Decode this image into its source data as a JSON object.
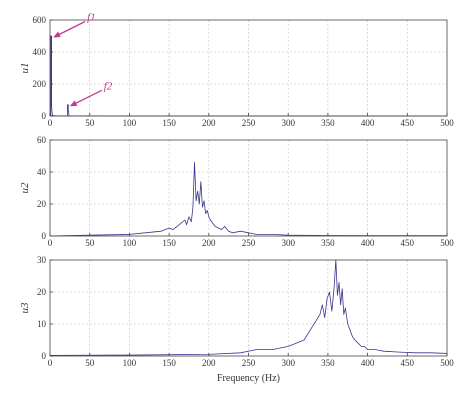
{
  "chart_data": [
    {
      "type": "line",
      "ylabel": "u1",
      "xlim": [
        0,
        500
      ],
      "ylim": [
        0,
        600
      ],
      "xticks": [
        0,
        50,
        100,
        150,
        200,
        250,
        300,
        350,
        400,
        450,
        500
      ],
      "yticks": [
        0,
        200,
        400,
        600
      ],
      "grid": true,
      "series": [
        {
          "x": [
            0,
            1,
            1,
            2,
            2,
            3,
            4,
            10,
            20,
            22,
            22,
            23,
            23,
            24,
            30,
            40,
            60,
            100,
            200,
            300,
            400,
            500
          ],
          "y": [
            0,
            0,
            500,
            500,
            60,
            2,
            2,
            1,
            1,
            1,
            70,
            70,
            40,
            1,
            1,
            1,
            1,
            0,
            0,
            0,
            0,
            0
          ]
        }
      ],
      "annotations": [
        {
          "text": "f1",
          "x": 2,
          "y": 500
        },
        {
          "text": "f2",
          "x": 23,
          "y": 70
        }
      ]
    },
    {
      "type": "line",
      "ylabel": "u2",
      "xlim": [
        0,
        500
      ],
      "ylim": [
        0,
        60
      ],
      "xticks": [
        0,
        50,
        100,
        150,
        200,
        250,
        300,
        350,
        400,
        450,
        500
      ],
      "yticks": [
        0,
        20,
        40,
        60
      ],
      "grid": true,
      "series": [
        {
          "x": [
            0,
            50,
            100,
            120,
            140,
            150,
            155,
            160,
            165,
            170,
            172,
            175,
            178,
            180,
            182,
            184,
            186,
            188,
            190,
            192,
            194,
            196,
            198,
            200,
            202,
            205,
            208,
            212,
            216,
            220,
            225,
            230,
            240,
            250,
            260,
            280,
            300,
            350,
            400,
            450,
            500
          ],
          "y": [
            0,
            0.5,
            1,
            2,
            3,
            5,
            4,
            6,
            8,
            10,
            7,
            12,
            9,
            18,
            46,
            22,
            28,
            20,
            34,
            18,
            22,
            14,
            16,
            12,
            10,
            8,
            6,
            5,
            4,
            6,
            3,
            2,
            3,
            2,
            1,
            1,
            0.5,
            0.3,
            0.2,
            0.2,
            0.2
          ]
        }
      ]
    },
    {
      "type": "line",
      "ylabel": "u3",
      "xlim": [
        0,
        500
      ],
      "ylim": [
        0,
        30
      ],
      "xticks": [
        0,
        50,
        100,
        150,
        200,
        250,
        300,
        350,
        400,
        450,
        500
      ],
      "yticks": [
        0,
        10,
        20,
        30
      ],
      "grid": true,
      "xlabel": "Frequency (Hz)",
      "series": [
        {
          "x": [
            0,
            100,
            200,
            240,
            260,
            280,
            300,
            310,
            320,
            325,
            330,
            335,
            340,
            343,
            346,
            349,
            352,
            355,
            358,
            360,
            362,
            364,
            366,
            368,
            370,
            372,
            375,
            378,
            381,
            384,
            388,
            392,
            396,
            400,
            410,
            420,
            440,
            460,
            480,
            500
          ],
          "y": [
            0.2,
            0.3,
            0.5,
            1,
            2,
            2,
            3,
            4,
            5,
            7,
            9,
            11,
            13,
            16,
            12,
            18,
            20,
            14,
            22,
            30,
            19,
            23,
            16,
            21,
            13,
            15,
            10,
            8,
            6,
            5,
            4,
            3,
            3,
            2,
            2,
            1.5,
            1.2,
            1,
            1,
            0.8
          ]
        }
      ]
    }
  ]
}
